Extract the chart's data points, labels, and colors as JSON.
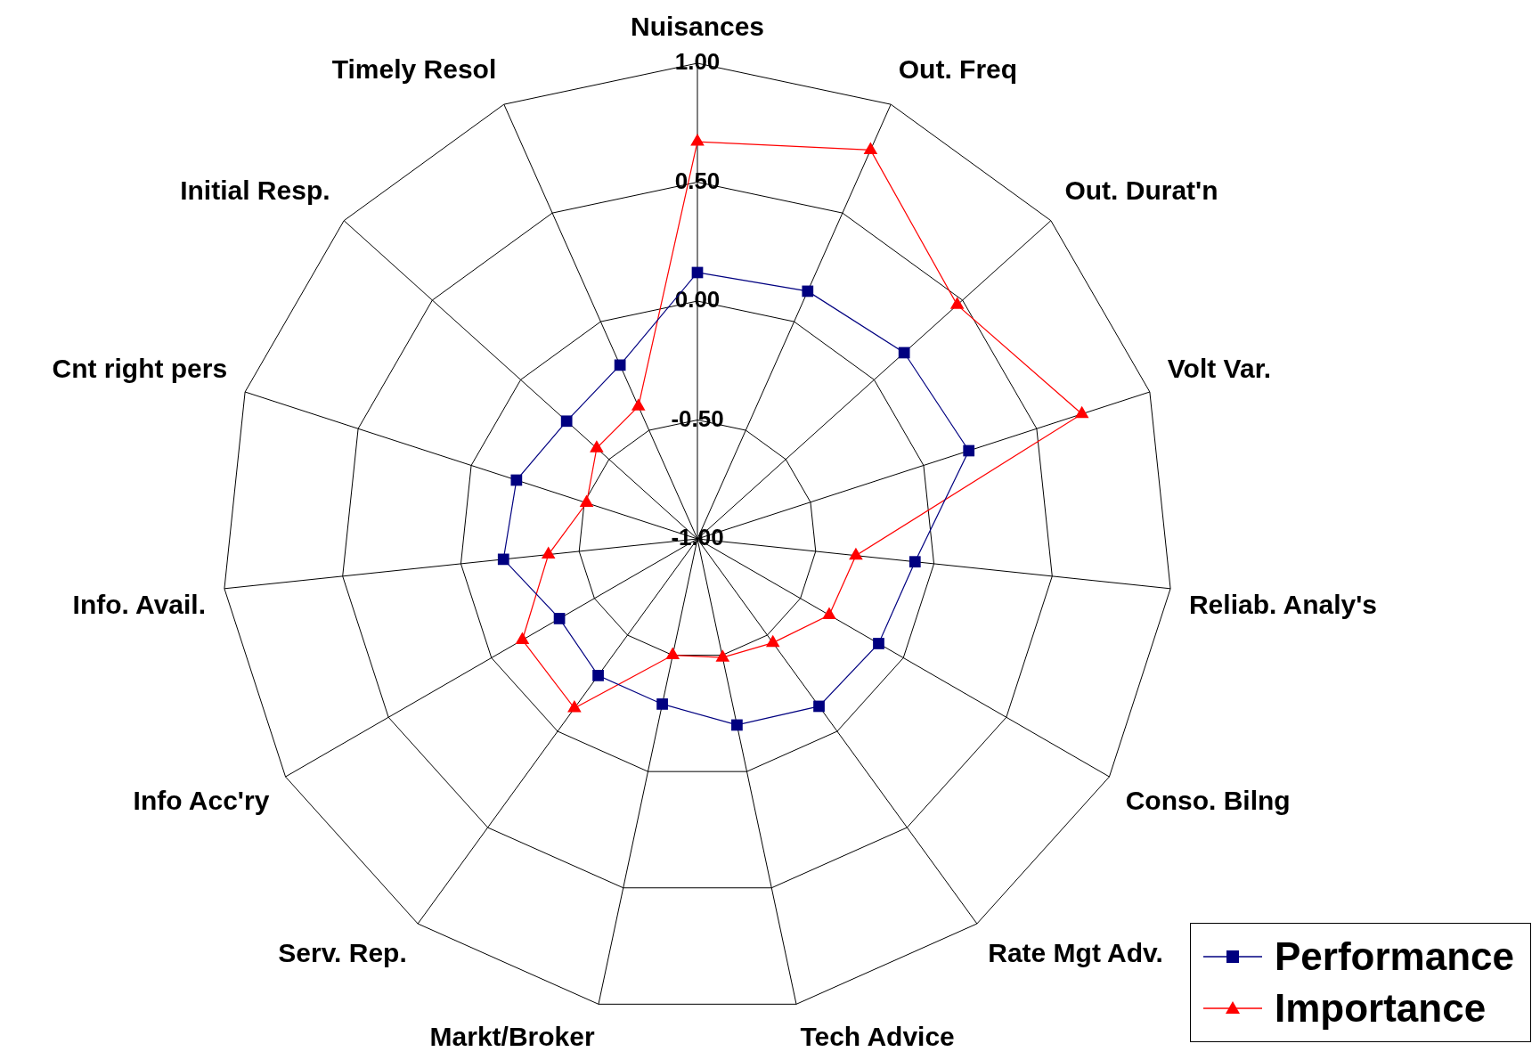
{
  "chart_data": {
    "type": "radar",
    "categories": [
      "Nuisances",
      "Out. Freq",
      "Out. Durat'n",
      "Volt Var.",
      "Reliab. Analy's",
      "Conso. Bilng",
      "Rate Mgt Adv.",
      "Tech Advice",
      "Markt/Broker",
      "Serv. Rep.",
      "Info Acc'ry",
      "Info. Avail.",
      "Cnt right pers",
      "Initial Resp.",
      "Timely Resol"
    ],
    "series": [
      {
        "name": "Performance",
        "color": "#000080",
        "marker": "square",
        "values": [
          0.12,
          0.14,
          0.17,
          0.2,
          -0.08,
          -0.12,
          -0.13,
          -0.2,
          -0.29,
          -0.29,
          -0.33,
          -0.18,
          -0.2,
          -0.26,
          -0.2
        ]
      },
      {
        "name": "Importance",
        "color": "#ff0000",
        "marker": "triangle",
        "values": [
          0.67,
          0.79,
          0.47,
          0.7,
          -0.33,
          -0.36,
          -0.46,
          -0.49,
          -0.5,
          -0.12,
          -0.15,
          -0.37,
          -0.51,
          -0.43,
          -0.39
        ]
      }
    ],
    "ylim": [
      -1,
      1
    ],
    "yticks": [
      {
        "value": -1,
        "label": "-1.00"
      },
      {
        "value": -0.5,
        "label": "-0.50"
      },
      {
        "value": 0,
        "label": "0.00"
      },
      {
        "value": 0.5,
        "label": "0.50"
      },
      {
        "value": 1,
        "label": "1.00"
      }
    ],
    "grid": true,
    "legend": "bottom right"
  }
}
